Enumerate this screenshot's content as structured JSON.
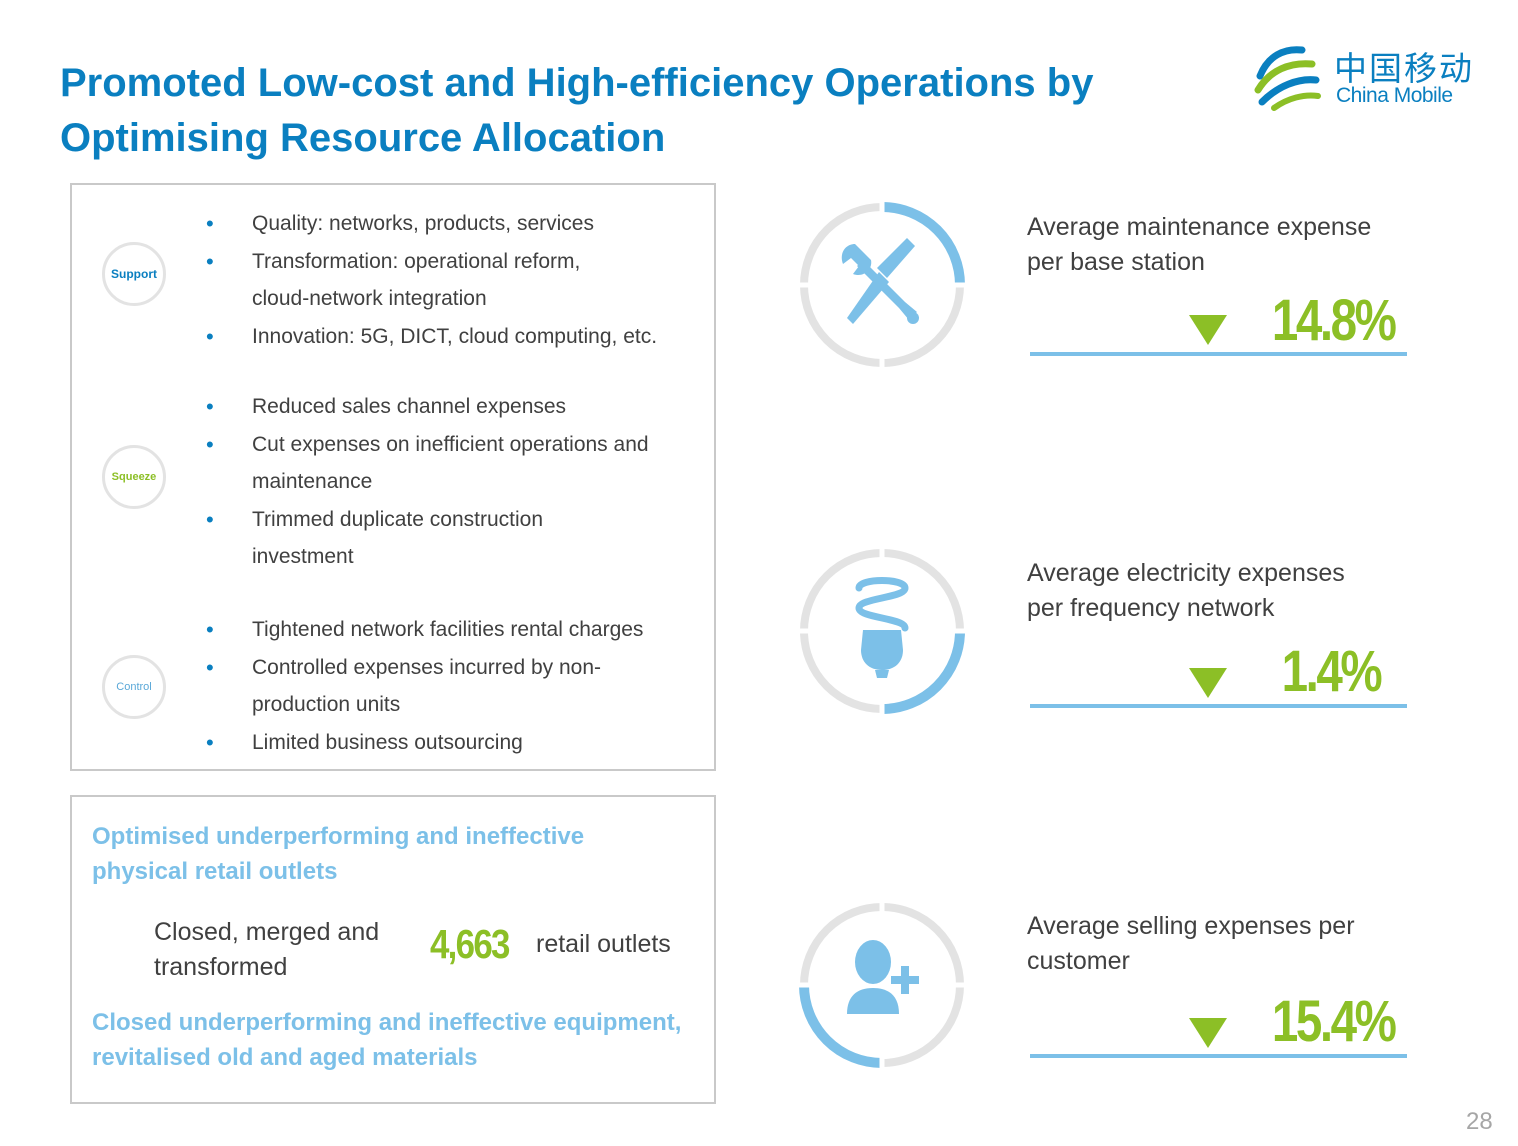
{
  "title": "Promoted Low-cost and High-efficiency Operations by Optimising Resource Allocation",
  "logo": {
    "cn": "中国移动",
    "en": "China Mobile"
  },
  "groups": [
    {
      "label": "Support",
      "color": "#0a7fc0",
      "items": [
        "Quality: networks, products, services",
        "Transformation: operational reform, cloud-network integration",
        "Innovation: 5G, DICT, cloud computing, etc."
      ]
    },
    {
      "label": "Squeeze",
      "color": "#8cbf26",
      "items": [
        "Reduced sales channel expenses",
        "Cut expenses on inefficient operations and maintenance",
        "Trimmed duplicate construction investment"
      ]
    },
    {
      "label": "Control",
      "color": "#5aa8d8",
      "items": [
        "Tightened network facilities rental charges",
        "Controlled expenses incurred by non-production units",
        "Limited business outsourcing"
      ]
    }
  ],
  "outlets": {
    "heading1": "Optimised underperforming and ineffective physical retail outlets",
    "text": "Closed, merged and transformed",
    "number": "4,663",
    "unit": "retail outlets",
    "heading2": "Closed underperforming and ineffective equipment, revitalised old and aged materials"
  },
  "metrics": [
    {
      "icon": "tools-icon",
      "label": "Average maintenance expense per base station",
      "value": "14.8%"
    },
    {
      "icon": "light-bulb-icon",
      "label": "Average electricity expenses per frequency network",
      "value": "1.4%"
    },
    {
      "icon": "add-user-icon",
      "label": "Average selling expenses per customer",
      "value": "15.4%"
    }
  ],
  "page_number": "28",
  "colors": {
    "title": "#0a7fc0",
    "accent_green": "#8cbf26",
    "light_blue": "#7cc0e8",
    "ring_grey": "#e3e3e3"
  }
}
